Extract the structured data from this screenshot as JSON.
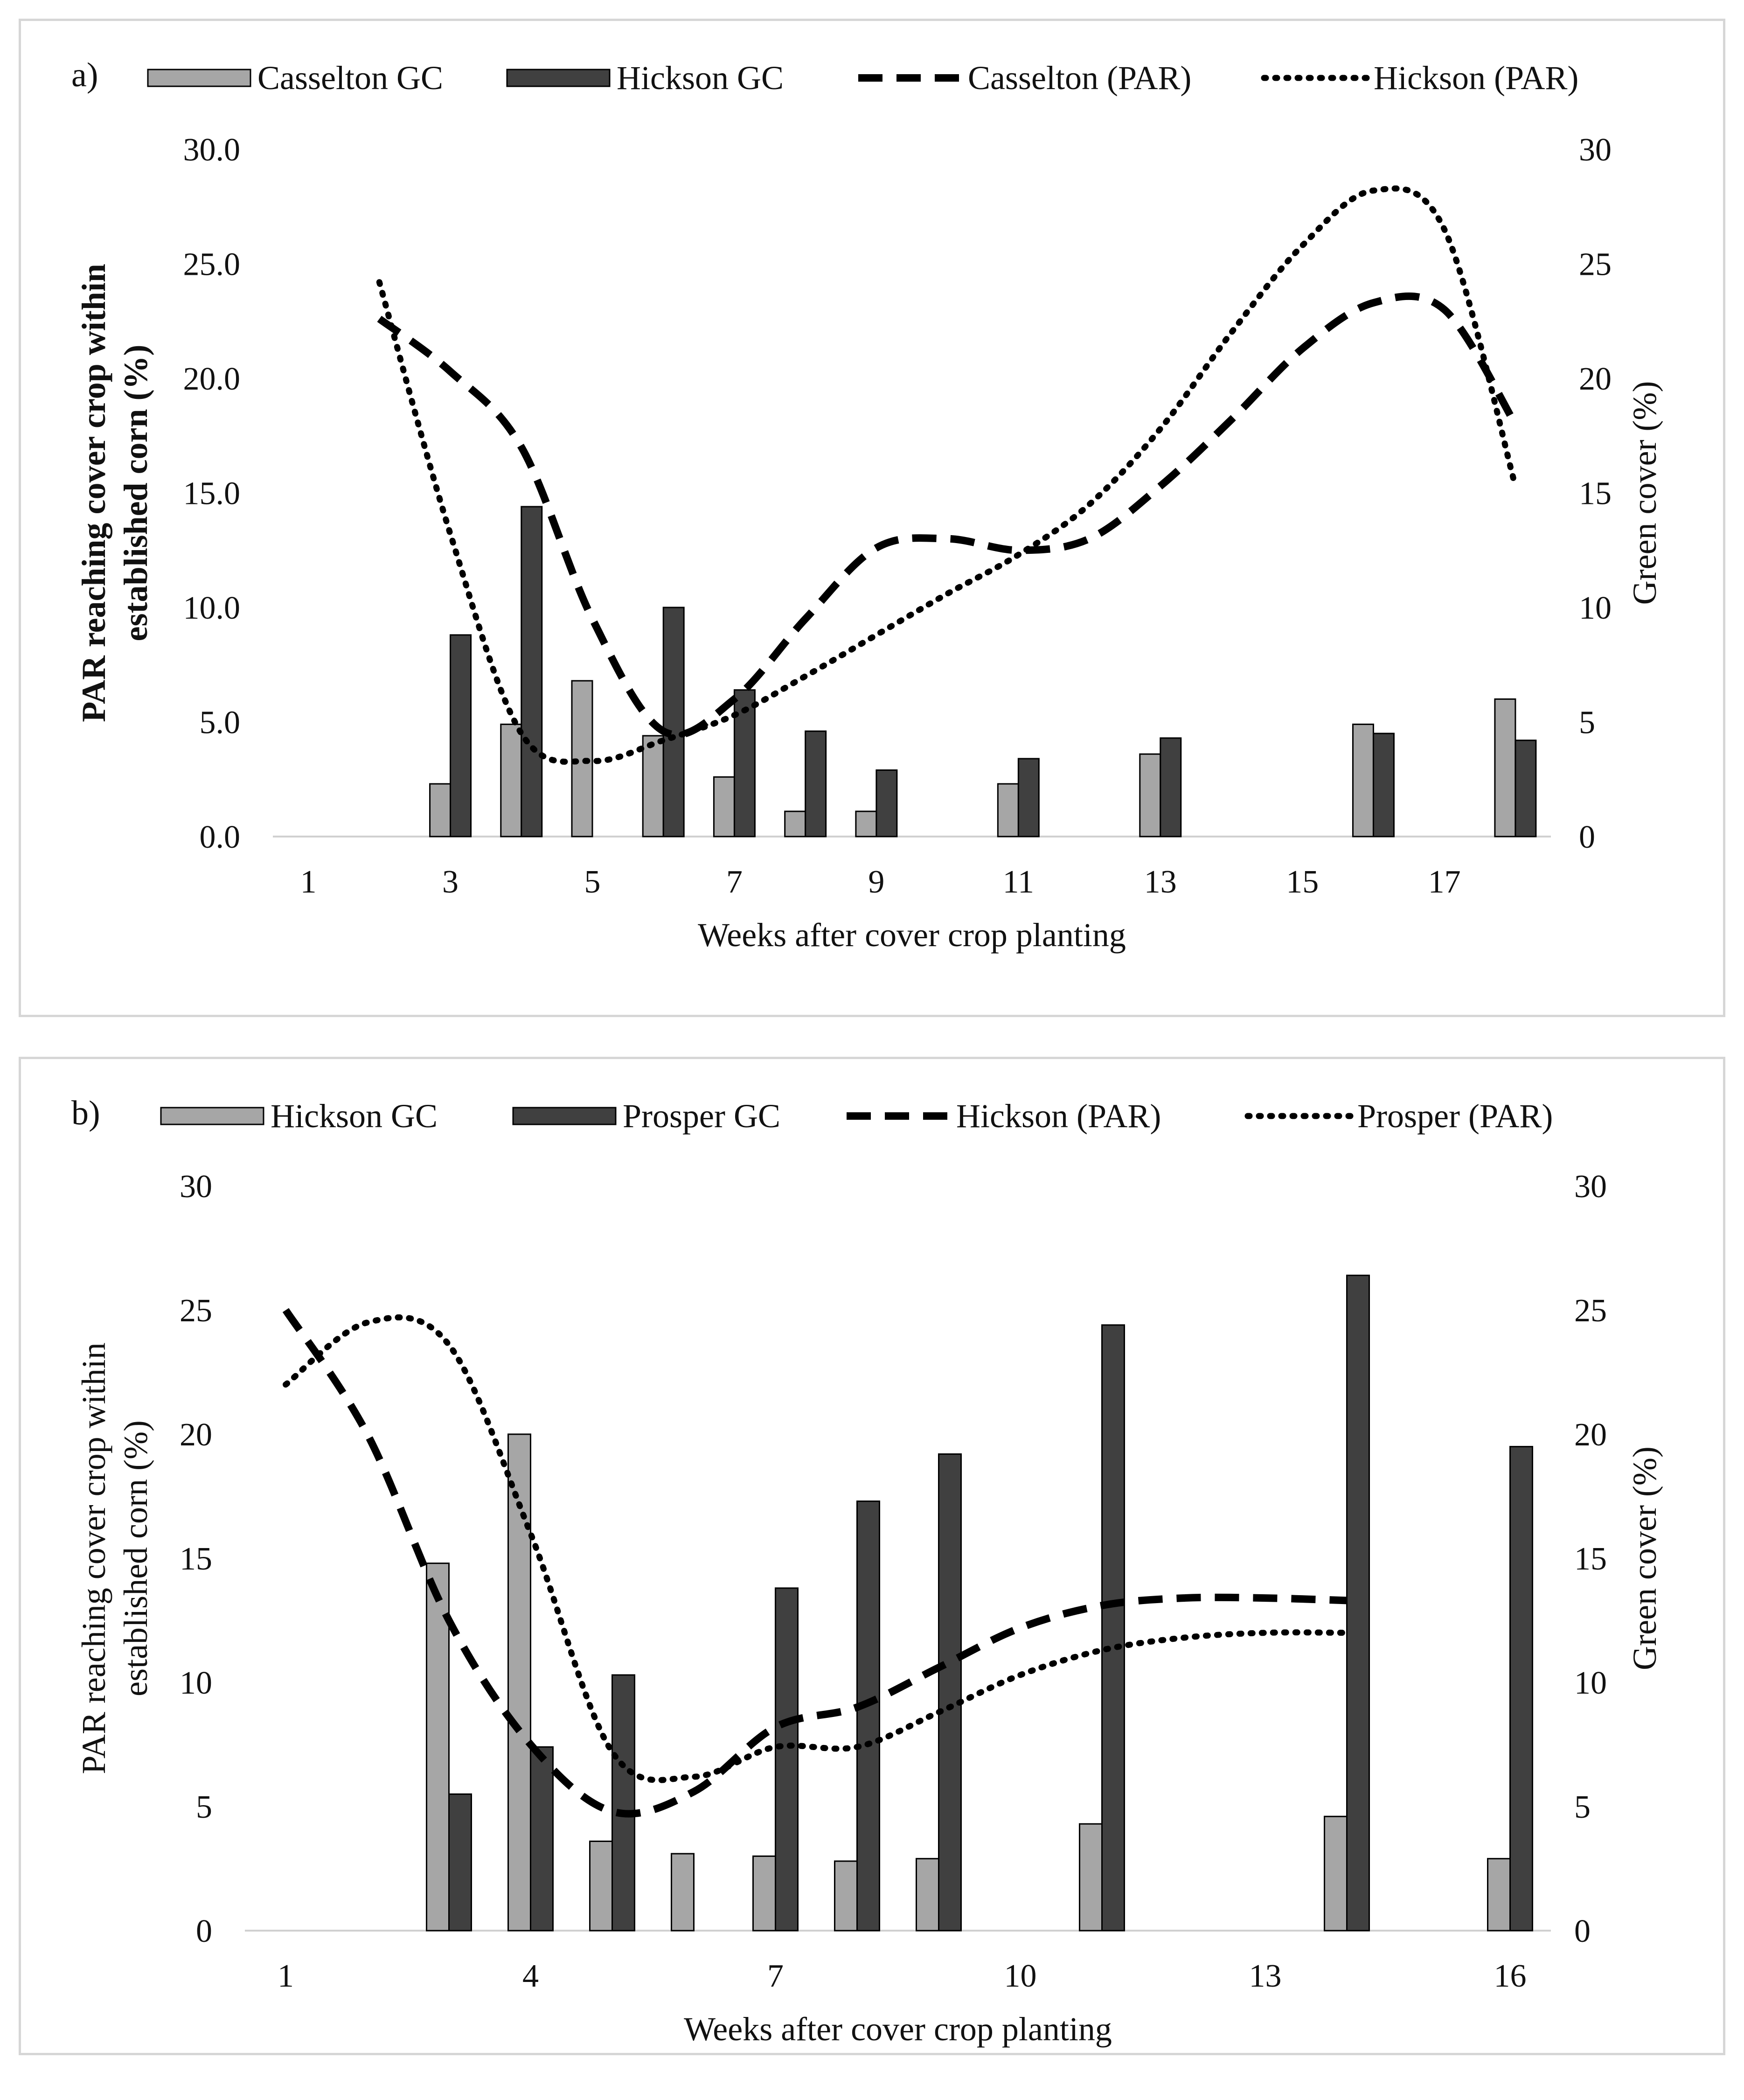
{
  "chart_data": [
    {
      "type": "bar",
      "panel_label": "a)",
      "xlabel": "Weeks after cover crop planting",
      "ylabel_left": [
        "PAR reaching cover crop within",
        "established corn (%)"
      ],
      "ylabel_left_bold": true,
      "ylabel_right": "Green cover (%)",
      "xlim": [
        0.5,
        18.5
      ],
      "ylim_left": [
        0,
        30
      ],
      "ylim_right": [
        0,
        30
      ],
      "x_ticks": [
        1,
        3,
        5,
        7,
        9,
        11,
        13,
        15,
        17
      ],
      "x_tick_labels": [
        "1",
        "3",
        "5",
        "7",
        "9",
        "11",
        "13",
        "15",
        "17"
      ],
      "y_ticks_left": [
        0,
        5,
        10,
        15,
        20,
        25,
        30
      ],
      "y_tick_labels_left": [
        "0.0",
        "5.0",
        "10.0",
        "15.0",
        "20.0",
        "25.0",
        "30.0"
      ],
      "y_ticks_right": [
        0,
        5,
        10,
        15,
        20,
        25,
        30
      ],
      "y_tick_labels_right": [
        "0",
        "5",
        "10",
        "15",
        "20",
        "25",
        "30"
      ],
      "legend": [
        {
          "label": "Casselton GC",
          "kind": "bar",
          "color": "#a6a6a6"
        },
        {
          "label": "Hickson GC",
          "kind": "bar",
          "color": "#404040"
        },
        {
          "label": "Casselton (PAR)",
          "kind": "dash",
          "color": "#000000"
        },
        {
          "label": "Hickson (PAR)",
          "kind": "dot",
          "color": "#000000"
        }
      ],
      "bar_series": [
        {
          "name": "Casselton GC",
          "color": "#a6a6a6",
          "x": [
            3,
            4,
            5,
            6,
            7,
            8,
            9,
            11,
            13,
            16,
            18
          ],
          "values": [
            2.3,
            4.9,
            6.8,
            4.4,
            2.6,
            1.1,
            1.1,
            2.3,
            3.6,
            4.9,
            6.0
          ]
        },
        {
          "name": "Hickson GC",
          "color": "#404040",
          "x": [
            3,
            4,
            6,
            7,
            8,
            9,
            11,
            13,
            16,
            18
          ],
          "values": [
            8.8,
            14.4,
            10.0,
            6.4,
            4.6,
            2.9,
            3.4,
            4.3,
            4.5,
            4.2
          ]
        }
      ],
      "line_series": [
        {
          "name": "Casselton (PAR)",
          "style": "dash",
          "x": [
            2,
            3,
            4,
            5,
            6,
            7,
            8,
            9,
            10,
            11,
            12,
            13,
            14,
            15,
            16,
            17,
            18
          ],
          "values": [
            22.6,
            20.3,
            17.0,
            9.5,
            4.6,
            6.0,
            9.5,
            12.6,
            13.0,
            12.5,
            13.0,
            15.3,
            18.2,
            21.3,
            23.3,
            23.0,
            18.0
          ]
        },
        {
          "name": "Hickson (PAR)",
          "style": "dot",
          "x": [
            2,
            3,
            4,
            5,
            6,
            7,
            8,
            9,
            10,
            11,
            12,
            13,
            14,
            15,
            16,
            17,
            18
          ],
          "values": [
            24.2,
            13.2,
            4.5,
            3.3,
            4.2,
            5.3,
            7.0,
            8.8,
            10.6,
            12.3,
            14.5,
            17.8,
            22.0,
            25.8,
            28.2,
            26.5,
            15.3
          ]
        }
      ]
    },
    {
      "type": "bar",
      "panel_label": "b)",
      "xlabel": "Weeks after cover crop planting",
      "ylabel_left": [
        "PAR reaching cover crop within",
        "established corn (%)"
      ],
      "ylabel_left_bold": false,
      "ylabel_right": "Green cover (%)",
      "xlim": [
        0.5,
        16.5
      ],
      "ylim_left": [
        0,
        30
      ],
      "ylim_right": [
        0,
        30
      ],
      "x_ticks": [
        1,
        4,
        7,
        10,
        13,
        16
      ],
      "x_tick_labels": [
        "1",
        "4",
        "7",
        "10",
        "13",
        "16"
      ],
      "y_ticks_left": [
        0,
        5,
        10,
        15,
        20,
        25,
        30
      ],
      "y_tick_labels_left": [
        "0",
        "5",
        "10",
        "15",
        "20",
        "25",
        "30"
      ],
      "y_ticks_right": [
        0,
        5,
        10,
        15,
        20,
        25,
        30
      ],
      "y_tick_labels_right": [
        "0",
        "5",
        "10",
        "15",
        "20",
        "25",
        "30"
      ],
      "legend": [
        {
          "label": "Hickson GC",
          "kind": "bar",
          "color": "#a6a6a6"
        },
        {
          "label": "Prosper GC",
          "kind": "bar",
          "color": "#404040"
        },
        {
          "label": "Hickson (PAR)",
          "kind": "dash",
          "color": "#000000"
        },
        {
          "label": "Prosper (PAR)",
          "kind": "dot",
          "color": "#000000"
        }
      ],
      "bar_series": [
        {
          "name": "Hickson GC",
          "color": "#a6a6a6",
          "x": [
            3,
            4,
            5,
            6,
            7,
            8,
            9,
            11,
            14,
            16
          ],
          "values": [
            14.8,
            20.0,
            3.6,
            3.1,
            3.0,
            2.8,
            2.9,
            4.3,
            4.6,
            2.9
          ]
        },
        {
          "name": "Prosper GC",
          "color": "#404040",
          "x": [
            3,
            4,
            5,
            7,
            8,
            9,
            11,
            14,
            16
          ],
          "values": [
            5.5,
            7.4,
            10.3,
            13.8,
            17.3,
            19.2,
            24.4,
            26.4,
            19.5
          ]
        }
      ],
      "line_series": [
        {
          "name": "Hickson (PAR)",
          "style": "dash",
          "x": [
            1,
            2,
            3,
            4,
            5,
            6,
            7,
            8,
            9,
            10,
            11,
            12,
            13,
            14
          ],
          "values": [
            25.0,
            20.0,
            12.5,
            7.5,
            4.8,
            5.6,
            8.2,
            9.0,
            10.6,
            12.2,
            13.1,
            13.4,
            13.4,
            13.3
          ]
        },
        {
          "name": "Prosper (PAR)",
          "style": "dot",
          "x": [
            1,
            2,
            3,
            4,
            5,
            6,
            7,
            8,
            9,
            10,
            11,
            12,
            13,
            14
          ],
          "values": [
            22.0,
            24.5,
            23.6,
            16.0,
            7.2,
            6.2,
            7.4,
            7.4,
            8.8,
            10.3,
            11.3,
            11.8,
            12.0,
            12.0
          ]
        }
      ]
    }
  ]
}
